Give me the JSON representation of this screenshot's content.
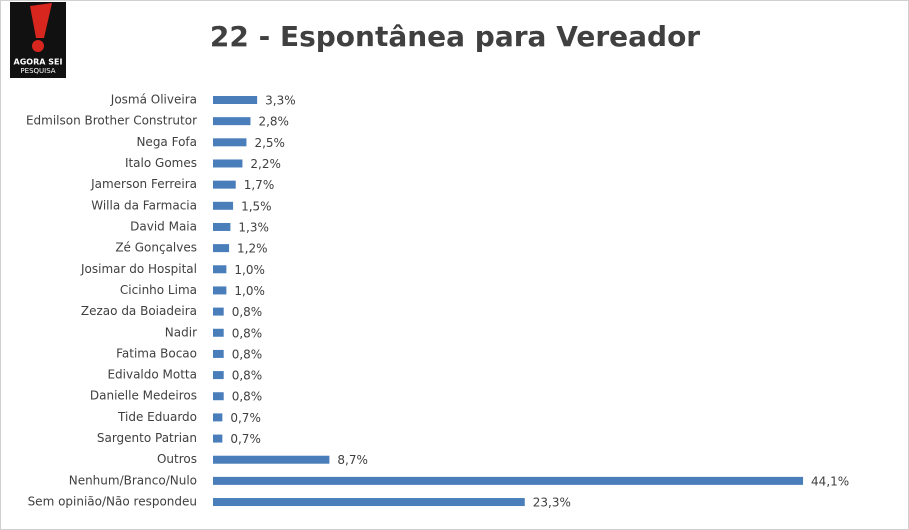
{
  "logo": {
    "line1": "AGORA SEI",
    "line2": "PESQUISA"
  },
  "chart_data": {
    "type": "bar",
    "orientation": "horizontal",
    "title": "22 - Espontânea para Vereador",
    "color": "#4a7ebb",
    "categories": [
      "Josmá Oliveira",
      "Edmilson Brother Construtor",
      "Nega Fofa",
      "Italo Gomes",
      "Jamerson Ferreira",
      "Willa da Farmacia",
      "David Maia",
      "Zé Gonçalves",
      "Josimar do Hospital",
      "Cicinho Lima",
      "Zezao da Boiadeira",
      "Nadir",
      "Fatima Bocao",
      "Edivaldo Motta",
      "Danielle Medeiros",
      "Tide Eduardo",
      "Sargento Patrian",
      "Outros",
      "Nenhum/Branco/Nulo",
      "Sem opinião/Não respondeu"
    ],
    "values": [
      3.3,
      2.8,
      2.5,
      2.2,
      1.7,
      1.5,
      1.3,
      1.2,
      1.0,
      1.0,
      0.8,
      0.8,
      0.8,
      0.8,
      0.8,
      0.7,
      0.7,
      8.7,
      44.1,
      23.3
    ],
    "value_labels": [
      "3,3%",
      "2,8%",
      "2,5%",
      "2,2%",
      "1,7%",
      "1,5%",
      "1,3%",
      "1,2%",
      "1,0%",
      "1,0%",
      "0,8%",
      "0,8%",
      "0,8%",
      "0,8%",
      "0,8%",
      "0,7%",
      "0,7%",
      "8,7%",
      "44,1%",
      "23,3%"
    ]
  }
}
